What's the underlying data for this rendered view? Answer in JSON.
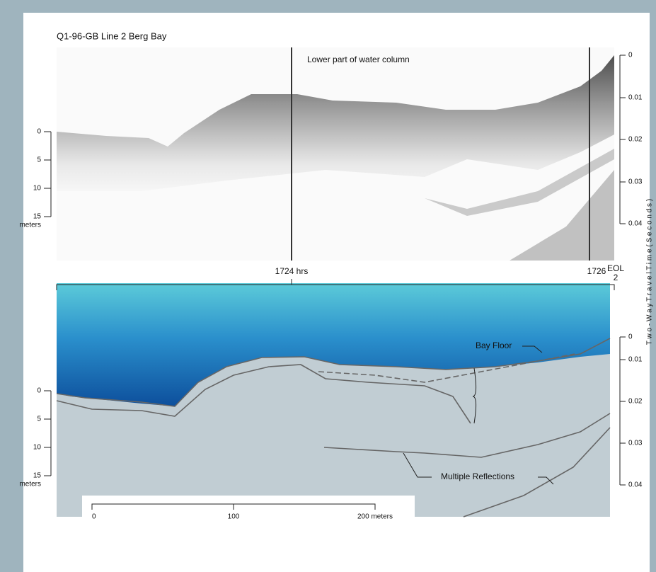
{
  "header": {
    "title": "Q1-96-GB  Line 2  Berg Bay"
  },
  "top_panel": {
    "annotation": "Lower part  of water column",
    "depth_ticks": [
      "0",
      "5",
      "10",
      "15"
    ],
    "depth_unit": "meters",
    "time_ticks": [
      "0",
      "0.01",
      "0.02",
      "0.03",
      "0.04"
    ],
    "time_marks": [
      "1724 hrs",
      "1726"
    ],
    "end_label": [
      "EOL",
      "2"
    ]
  },
  "bottom_panel": {
    "labels": [
      "Bay Floor",
      "Multiple Reflections"
    ],
    "depth_ticks": [
      "0",
      "5",
      "10",
      "15"
    ],
    "depth_unit": "meters",
    "time_ticks": [
      "0",
      "0.01",
      "0.02",
      "0.03",
      "0.04"
    ],
    "scale_bar": [
      "0",
      "100",
      "200 meters"
    ]
  },
  "axis_title": "T w o - W a y   T r a v e l   T i m e  ( S e c o n d s )"
}
